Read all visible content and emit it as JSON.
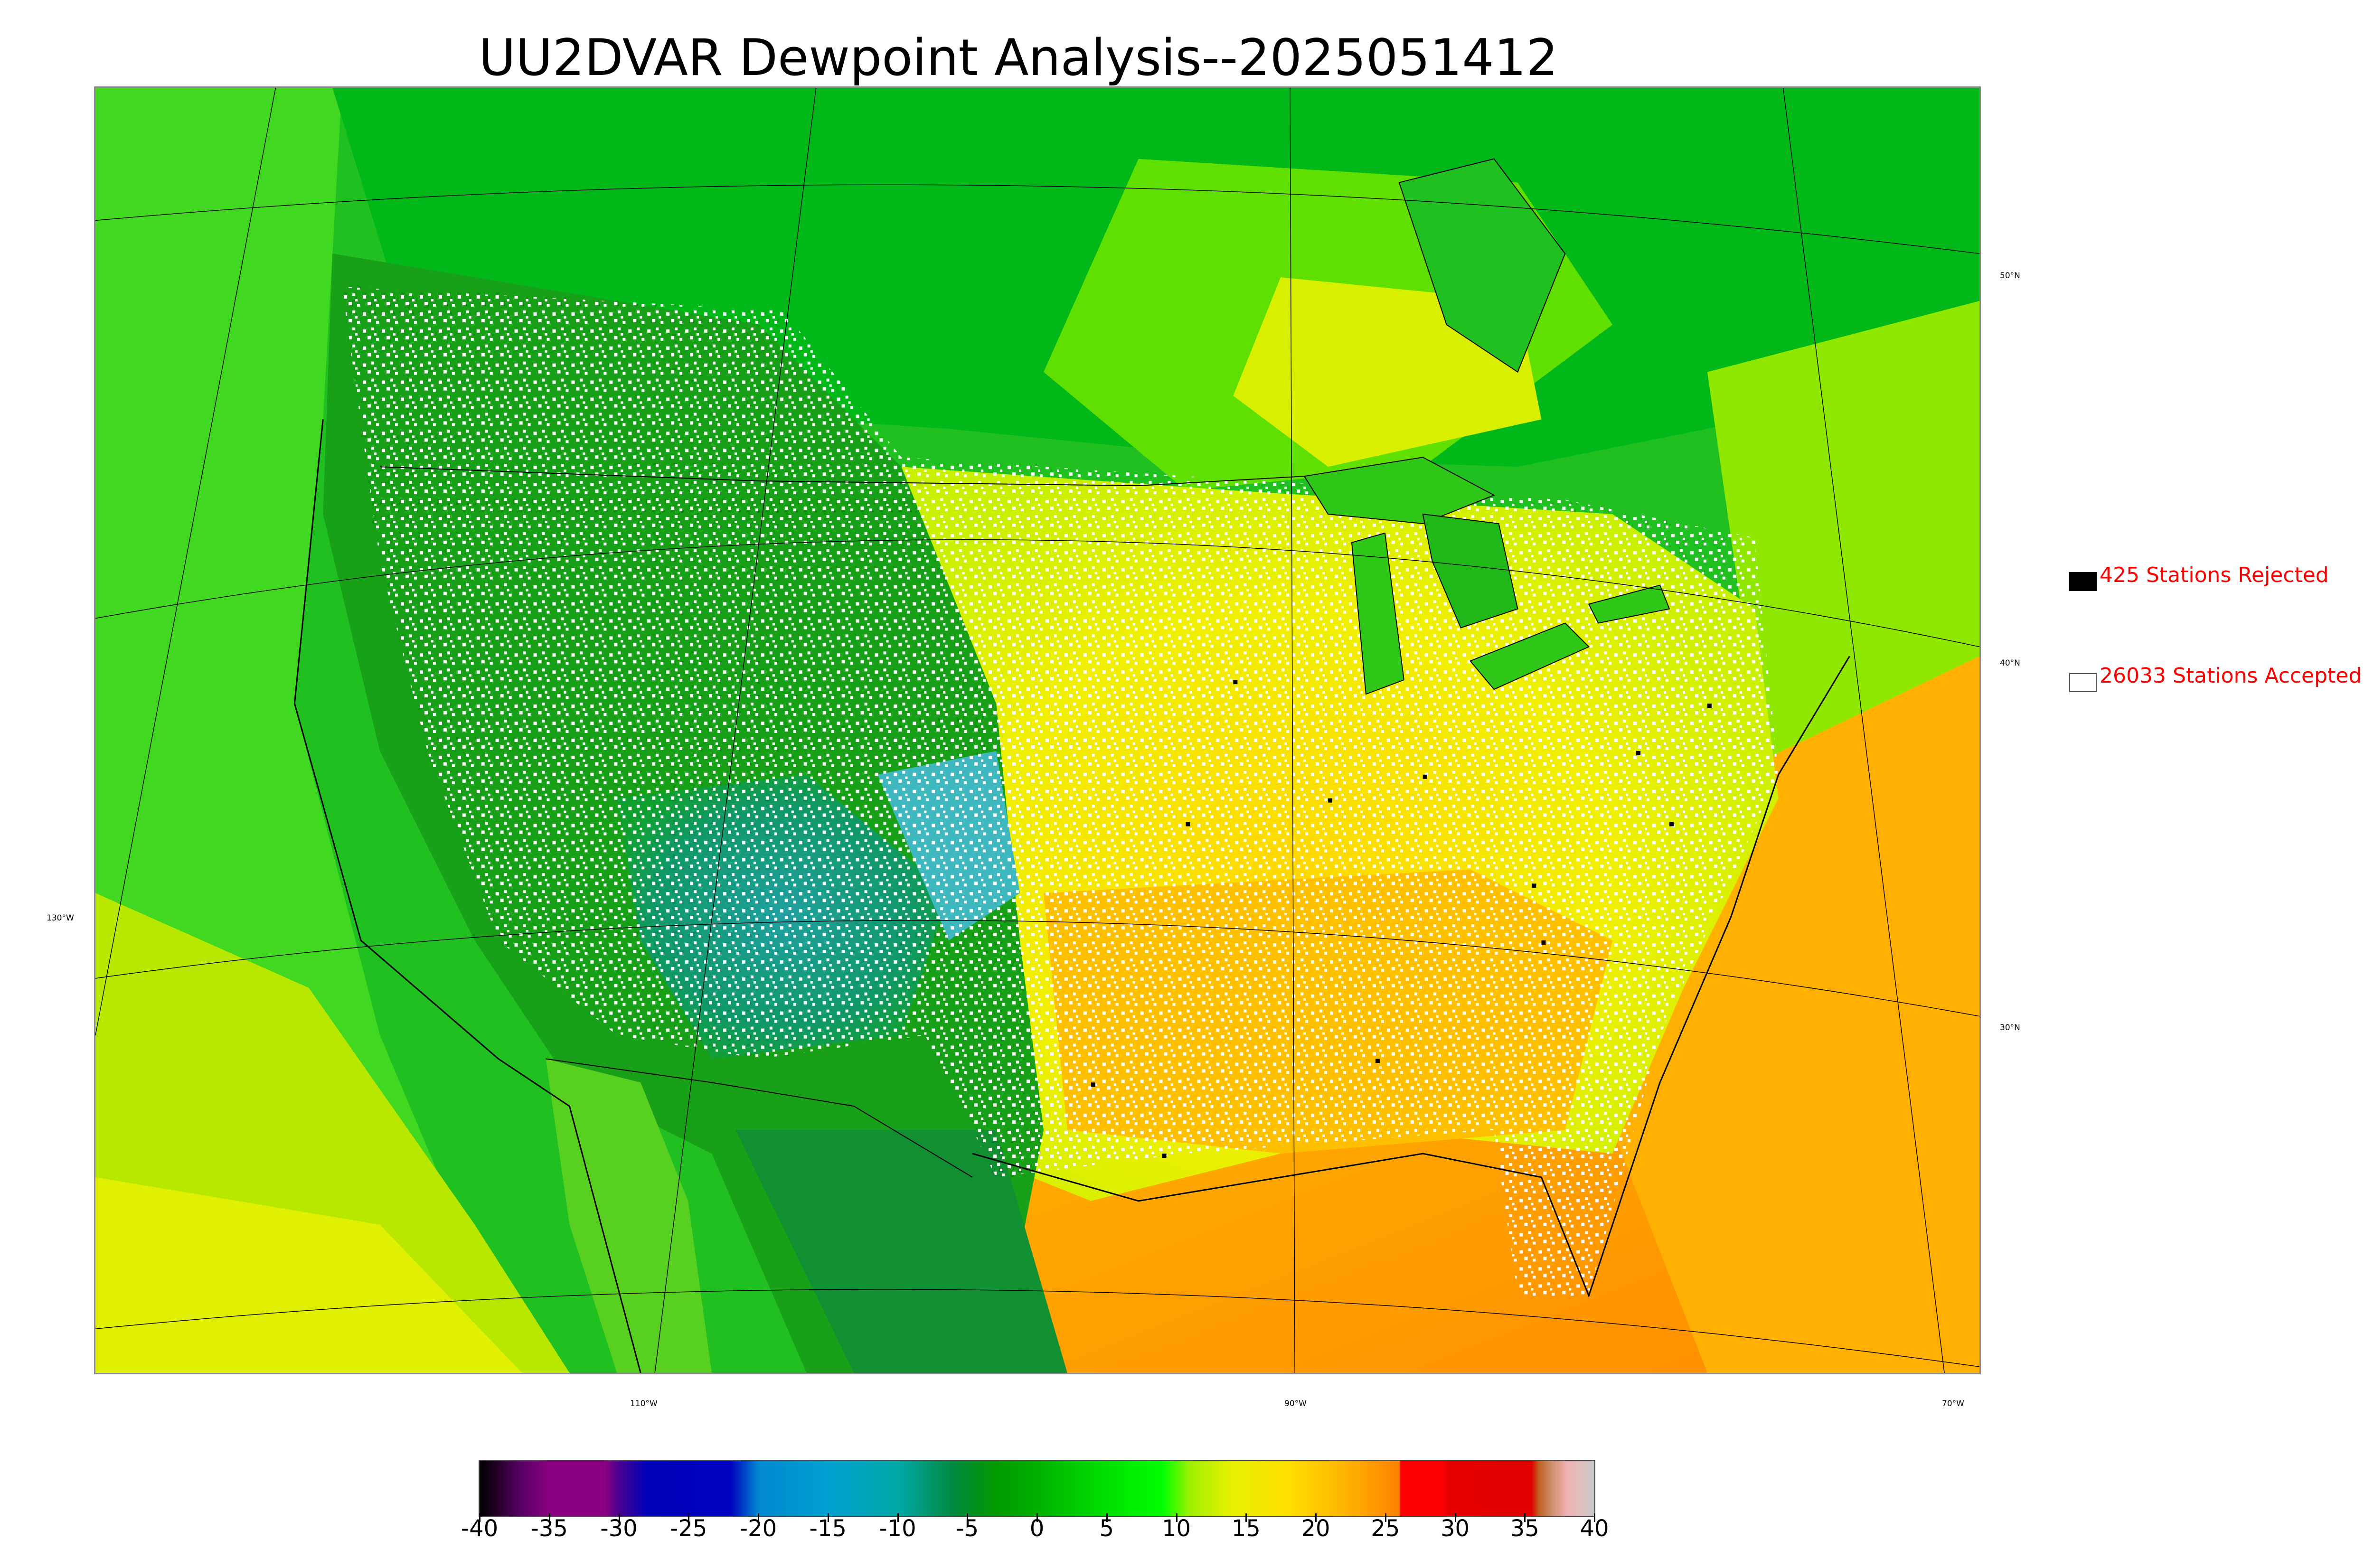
{
  "title": "UU2DVAR Dewpoint Analysis--2025051412",
  "map": {
    "lon_labels": [
      "130°W",
      "110°W",
      "90°W",
      "70°W"
    ],
    "lat_labels": [
      "50°N",
      "40°N",
      "30°N"
    ]
  },
  "legend": {
    "rejected": {
      "count": "425",
      "label": "425 Stations Rejected",
      "color": "#ff0000",
      "marker": "black-filled-square"
    },
    "accepted": {
      "count": "26033",
      "label": "26033 Stations Accepted",
      "color": "#ff0000",
      "marker": "white-open-square"
    }
  },
  "colorbar": {
    "ticks": [
      "-40",
      "-35",
      "-30",
      "-25",
      "-20",
      "-15",
      "-10",
      "-5",
      "0",
      "5",
      "10",
      "15",
      "20",
      "25",
      "30",
      "35",
      "40"
    ],
    "range": [
      -40,
      40
    ],
    "stops": [
      {
        "v": -40,
        "c": "#000000"
      },
      {
        "v": -38.5,
        "c": "#2a0030"
      },
      {
        "v": -37,
        "c": "#5a0068"
      },
      {
        "v": -35,
        "c": "#8a0080"
      },
      {
        "v": -31,
        "c": "#8a0080"
      },
      {
        "v": -30,
        "c": "#4a0090"
      },
      {
        "v": -28,
        "c": "#0000b8"
      },
      {
        "v": -22,
        "c": "#0000c0"
      },
      {
        "v": -20,
        "c": "#0088d0"
      },
      {
        "v": -15,
        "c": "#00a0d0"
      },
      {
        "v": -10,
        "c": "#00a8a8"
      },
      {
        "v": -6,
        "c": "#008a40"
      },
      {
        "v": -3,
        "c": "#009900"
      },
      {
        "v": 0,
        "c": "#00b000"
      },
      {
        "v": 5,
        "c": "#00e000"
      },
      {
        "v": 9,
        "c": "#00ff00"
      },
      {
        "v": 11,
        "c": "#a0f000"
      },
      {
        "v": 14,
        "c": "#e8f000"
      },
      {
        "v": 18,
        "c": "#ffe000"
      },
      {
        "v": 21,
        "c": "#ffc000"
      },
      {
        "v": 24,
        "c": "#ff9c00"
      },
      {
        "v": 26,
        "c": "#ff8000"
      },
      {
        "v": 26.1,
        "c": "#ff0000"
      },
      {
        "v": 29,
        "c": "#ff0000"
      },
      {
        "v": 29.5,
        "c": "#e80000"
      },
      {
        "v": 35.5,
        "c": "#e00000"
      },
      {
        "v": 36,
        "c": "#c06020"
      },
      {
        "v": 37,
        "c": "#d09070"
      },
      {
        "v": 38,
        "c": "#f0b0b0"
      },
      {
        "v": 39,
        "c": "#e0c0c0"
      },
      {
        "v": 40,
        "c": "#c8c8c8"
      }
    ]
  }
}
